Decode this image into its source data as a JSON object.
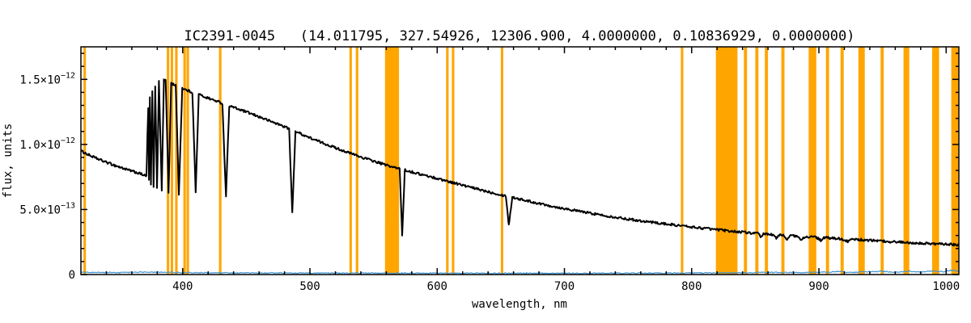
{
  "window": {
    "background": "#ffffff"
  },
  "chart_data": {
    "type": "line",
    "title": "IC2391-0045   (14.011795, 327.54926, 12306.900, 4.0000000, 0.10836929, 0.0000000)",
    "xlabel": "wavelength, nm",
    "ylabel": "flux, units",
    "xlim": [
      320,
      1010
    ],
    "ylim_e12": [
      0,
      1.75
    ],
    "grid": false,
    "legend": "none",
    "x_major_ticks": [
      400,
      500,
      600,
      700,
      800,
      900,
      1000
    ],
    "x_minor_step": 20,
    "y_major_ticks": [
      {
        "value_e12": 0.0,
        "mantissa": "0",
        "exponent": ""
      },
      {
        "value_e12": 0.5,
        "mantissa": "5.0×10",
        "exponent": "−13"
      },
      {
        "value_e12": 1.0,
        "mantissa": "1.0×10",
        "exponent": "−12"
      },
      {
        "value_e12": 1.5,
        "mantissa": "1.5×10",
        "exponent": "−12"
      }
    ],
    "y_minor_step_e12": 0.1,
    "colors": {
      "spectrum": "#000000",
      "error": "#4094d0",
      "mask": "#ffa500",
      "axis": "#000000",
      "background": "#ffffff"
    },
    "masked_bands_nm": [
      [
        322,
        324
      ],
      [
        387.5,
        389.5
      ],
      [
        390.5,
        392.5
      ],
      [
        394,
        396
      ],
      [
        400.5,
        402.5
      ],
      [
        403,
        405
      ],
      [
        428.5,
        430.5
      ],
      [
        531,
        533
      ],
      [
        536,
        538
      ],
      [
        559,
        570
      ],
      [
        607,
        609
      ],
      [
        611.5,
        613.5
      ],
      [
        650,
        652
      ],
      [
        791.5,
        793.5
      ],
      [
        819,
        836
      ],
      [
        841,
        843.5
      ],
      [
        850,
        852.5
      ],
      [
        857.5,
        860
      ],
      [
        870.5,
        873
      ],
      [
        892,
        898
      ],
      [
        905.5,
        908
      ],
      [
        917,
        919.5
      ],
      [
        931,
        936
      ],
      [
        948.5,
        951
      ],
      [
        966.5,
        971
      ],
      [
        989,
        994.5
      ],
      [
        1004,
        1009.5
      ]
    ],
    "series": [
      {
        "name": "spectrum",
        "color_key": "spectrum",
        "points_nm_flux_e12": [
          [
            320,
            0.95
          ],
          [
            323,
            0.935
          ],
          [
            326,
            0.92
          ],
          [
            329,
            0.907
          ],
          [
            332,
            0.894
          ],
          [
            335,
            0.882
          ],
          [
            338,
            0.87
          ],
          [
            341,
            0.859
          ],
          [
            344,
            0.848
          ],
          [
            347,
            0.837
          ],
          [
            350,
            0.827
          ],
          [
            353,
            0.817
          ],
          [
            356,
            0.807
          ],
          [
            359,
            0.798
          ],
          [
            362,
            0.789
          ],
          [
            365,
            0.78
          ],
          [
            368,
            0.77
          ],
          [
            370,
            0.762
          ],
          [
            371.5,
            0.755
          ],
          [
            372.3,
            1.08
          ],
          [
            372.9,
            1.28
          ],
          [
            373.5,
            0.73
          ],
          [
            374.2,
            1.36
          ],
          [
            375.0,
            0.7
          ],
          [
            376.1,
            1.41
          ],
          [
            377.1,
            0.68
          ],
          [
            378.4,
            1.45
          ],
          [
            379.8,
            0.66
          ],
          [
            381.3,
            1.49
          ],
          [
            383.5,
            0.645
          ],
          [
            385.2,
            1.5
          ],
          [
            386.6,
            1.49
          ],
          [
            388.9,
            0.63
          ],
          [
            390.9,
            1.47
          ],
          [
            392.7,
            1.462
          ],
          [
            394.5,
            1.455
          ],
          [
            397.0,
            0.62
          ],
          [
            399.6,
            1.432
          ],
          [
            402.2,
            1.42
          ],
          [
            405.6,
            1.408
          ],
          [
            407.6,
            1.398
          ],
          [
            410.2,
            0.63
          ],
          [
            412.6,
            1.385
          ],
          [
            416,
            1.37
          ],
          [
            420,
            1.356
          ],
          [
            424,
            1.342
          ],
          [
            428,
            1.328
          ],
          [
            431.2,
            1.315
          ],
          [
            434.0,
            0.6
          ],
          [
            436.6,
            1.296
          ],
          [
            440,
            1.285
          ],
          [
            444,
            1.27
          ],
          [
            448,
            1.256
          ],
          [
            452,
            1.242
          ],
          [
            456,
            1.227
          ],
          [
            460,
            1.212
          ],
          [
            464,
            1.197
          ],
          [
            468,
            1.182
          ],
          [
            472,
            1.167
          ],
          [
            476,
            1.152
          ],
          [
            480,
            1.137
          ],
          [
            483.6,
            1.122
          ],
          [
            486.1,
            0.47
          ],
          [
            488.6,
            1.102
          ],
          [
            492,
            1.086
          ],
          [
            496,
            1.068
          ],
          [
            500,
            1.051
          ],
          [
            505,
            1.031
          ],
          [
            510,
            1.012
          ],
          [
            515,
            0.993
          ],
          [
            520,
            0.974
          ],
          [
            525,
            0.956
          ],
          [
            530,
            0.938
          ],
          [
            535,
            0.921
          ],
          [
            540,
            0.904
          ],
          [
            545,
            0.888
          ],
          [
            550,
            0.872
          ],
          [
            555,
            0.856
          ],
          [
            560,
            0.841
          ],
          [
            566,
            0.824
          ],
          [
            570.5,
            0.812
          ],
          [
            572.5,
            0.3
          ],
          [
            574.5,
            0.803
          ],
          [
            580,
            0.789
          ],
          [
            586,
            0.773
          ],
          [
            592,
            0.758
          ],
          [
            598,
            0.743
          ],
          [
            604,
            0.728
          ],
          [
            610,
            0.713
          ],
          [
            616,
            0.697
          ],
          [
            622,
            0.681
          ],
          [
            628,
            0.666
          ],
          [
            634,
            0.651
          ],
          [
            640,
            0.637
          ],
          [
            646,
            0.623
          ],
          [
            651,
            0.611
          ],
          [
            654,
            0.604
          ],
          [
            656.3,
            0.38
          ],
          [
            659,
            0.594
          ],
          [
            664,
            0.582
          ],
          [
            670,
            0.568
          ],
          [
            676,
            0.555
          ],
          [
            682,
            0.542
          ],
          [
            688,
            0.53
          ],
          [
            694,
            0.518
          ],
          [
            700,
            0.507
          ],
          [
            706,
            0.496
          ],
          [
            712,
            0.486
          ],
          [
            718,
            0.476
          ],
          [
            724,
            0.466
          ],
          [
            730,
            0.456
          ],
          [
            736,
            0.447
          ],
          [
            742,
            0.438
          ],
          [
            748,
            0.43
          ],
          [
            754,
            0.421
          ],
          [
            760,
            0.413
          ],
          [
            766,
            0.406
          ],
          [
            772,
            0.398
          ],
          [
            778,
            0.391
          ],
          [
            784,
            0.384
          ],
          [
            790,
            0.377
          ],
          [
            796,
            0.37
          ],
          [
            802,
            0.363
          ],
          [
            808,
            0.357
          ],
          [
            814,
            0.351
          ],
          [
            820,
            0.345
          ],
          [
            826,
            0.339
          ],
          [
            832,
            0.333
          ],
          [
            838,
            0.328
          ],
          [
            844,
            0.322
          ],
          [
            849,
            0.318
          ],
          [
            852,
            0.316
          ],
          [
            854.5,
            0.285
          ],
          [
            856.5,
            0.313
          ],
          [
            860,
            0.31
          ],
          [
            864,
            0.307
          ],
          [
            866.5,
            0.278
          ],
          [
            869,
            0.304
          ],
          [
            872,
            0.302
          ],
          [
            875,
            0.272
          ],
          [
            877.5,
            0.299
          ],
          [
            882,
            0.296
          ],
          [
            886.3,
            0.266
          ],
          [
            889,
            0.292
          ],
          [
            893,
            0.289
          ],
          [
            898,
            0.286
          ],
          [
            901.5,
            0.262
          ],
          [
            904,
            0.283
          ],
          [
            908,
            0.281
          ],
          [
            913,
            0.278
          ],
          [
            918,
            0.275
          ],
          [
            922.9,
            0.252
          ],
          [
            926,
            0.271
          ],
          [
            931,
            0.268
          ],
          [
            936,
            0.265
          ],
          [
            941,
            0.262
          ],
          [
            946,
            0.259
          ],
          [
            951,
            0.256
          ],
          [
            956,
            0.253
          ],
          [
            961,
            0.251
          ],
          [
            966,
            0.248
          ],
          [
            971,
            0.246
          ],
          [
            976,
            0.243
          ],
          [
            981,
            0.241
          ],
          [
            986,
            0.238
          ],
          [
            991,
            0.236
          ],
          [
            996,
            0.234
          ],
          [
            1001,
            0.232
          ],
          [
            1006,
            0.23
          ],
          [
            1010,
            0.228
          ]
        ]
      },
      {
        "name": "error",
        "color_key": "error",
        "points_nm_flux_e12": [
          [
            320,
            0.018
          ],
          [
            350,
            0.015
          ],
          [
            375,
            0.02
          ],
          [
            400,
            0.015
          ],
          [
            430,
            0.013
          ],
          [
            470,
            0.012
          ],
          [
            520,
            0.011
          ],
          [
            570,
            0.011
          ],
          [
            620,
            0.01
          ],
          [
            670,
            0.01
          ],
          [
            720,
            0.01
          ],
          [
            770,
            0.011
          ],
          [
            820,
            0.013
          ],
          [
            855,
            0.016
          ],
          [
            880,
            0.015
          ],
          [
            900,
            0.018
          ],
          [
            915,
            0.022
          ],
          [
            925,
            0.016
          ],
          [
            935,
            0.02
          ],
          [
            950,
            0.024
          ],
          [
            960,
            0.018
          ],
          [
            970,
            0.026
          ],
          [
            980,
            0.02
          ],
          [
            990,
            0.028
          ],
          [
            998,
            0.022
          ],
          [
            1004,
            0.032
          ],
          [
            1010,
            0.024
          ]
        ]
      }
    ]
  }
}
